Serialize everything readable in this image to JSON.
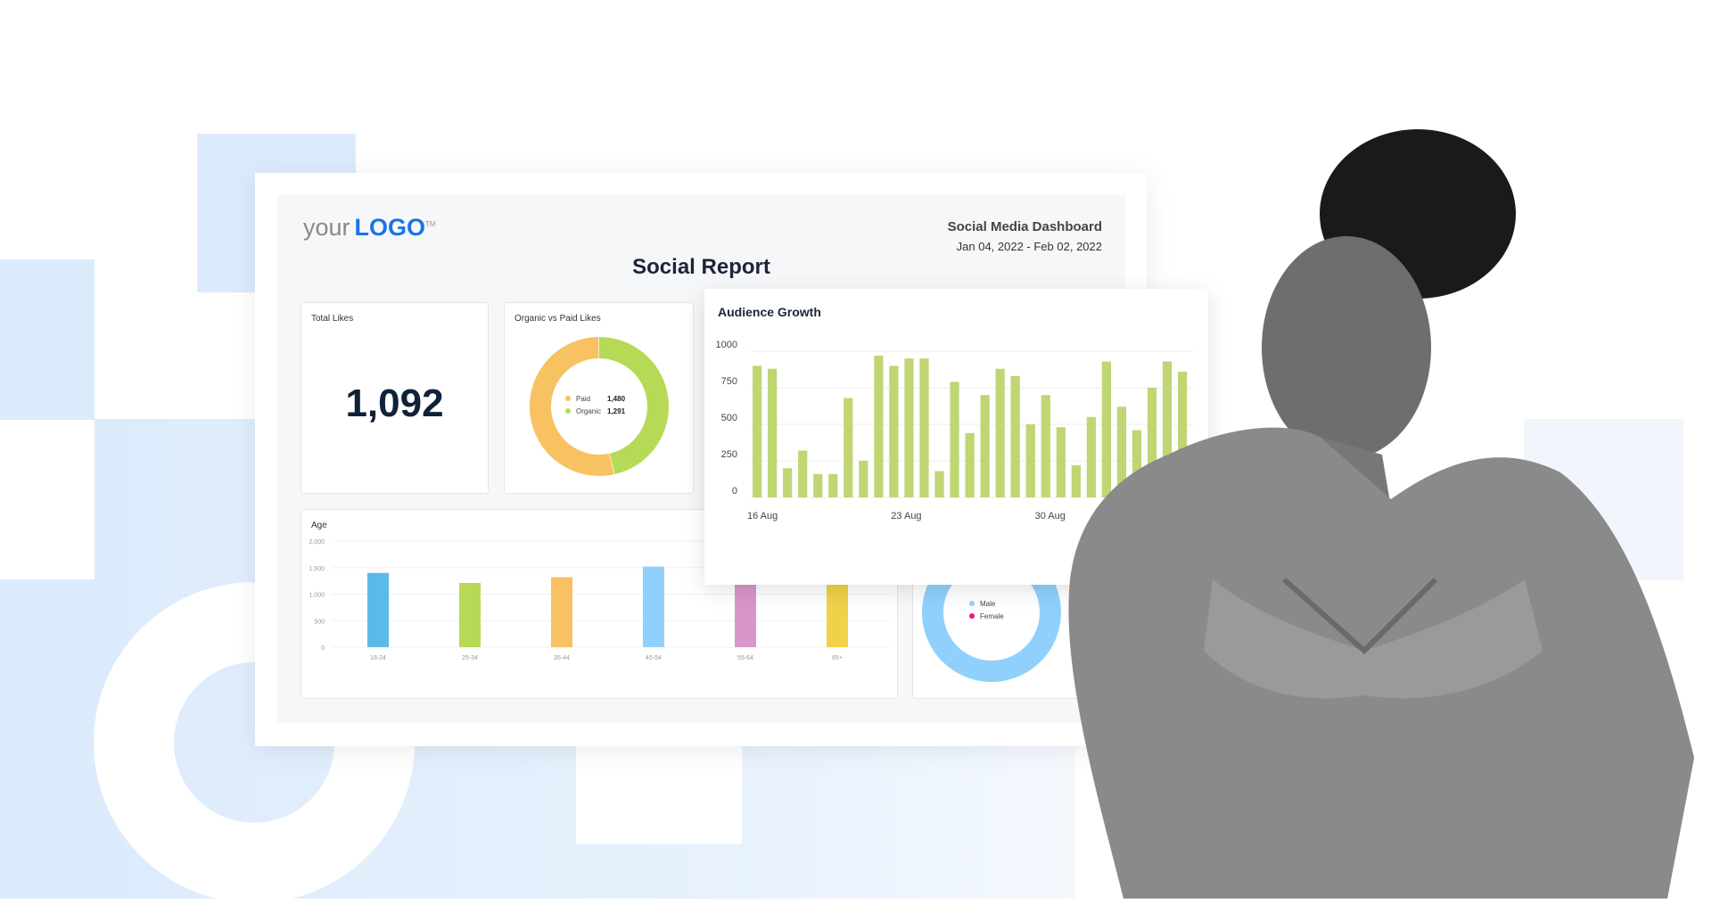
{
  "colors": {
    "accent": "#1a73e8",
    "bg_blue": "#dcebfc",
    "bar_green": "#bfd672",
    "paid": "#f8c162",
    "organic": "#b6da55",
    "male": "#8fd1fc",
    "female": "#f0147d"
  },
  "header": {
    "logo_text_your": "your",
    "logo_text_logo": "LOGO",
    "logo_tm": "TM",
    "dashboard_name": "Social Media Dashboard",
    "date_range": "Jan 04, 2022 - Feb 02, 2022",
    "title": "Social Report"
  },
  "total_likes": {
    "title": "Total Likes",
    "value": "1,092"
  },
  "chart_data": [
    {
      "type": "pie",
      "title": "Organic vs Paid Likes",
      "donut": true,
      "labels": [
        "Paid",
        "Organic"
      ],
      "values": [
        1480,
        1291
      ],
      "display_values": [
        "1,480",
        "1,291"
      ],
      "colors": [
        "#f8c162",
        "#b6da55"
      ]
    },
    {
      "type": "bar",
      "title": "Audience Growth",
      "ylim": [
        0,
        1000
      ],
      "yticks": [
        "0",
        "250",
        "500",
        "750",
        "1000"
      ],
      "xtick_labels": [
        "16 Aug",
        "23 Aug",
        "30 Aug"
      ],
      "values": [
        900,
        880,
        200,
        320,
        160,
        160,
        680,
        250,
        970,
        900,
        950,
        950,
        180,
        790,
        440,
        700,
        880,
        830,
        500,
        700,
        480,
        220,
        550,
        930,
        620,
        460,
        750,
        930,
        860
      ],
      "color": "#bfd672",
      "grid": true
    },
    {
      "type": "bar",
      "title": "Age",
      "categories": [
        "18-24",
        "25-34",
        "35-44",
        "45-54",
        "55-64",
        "65+"
      ],
      "values": [
        1400,
        1210,
        1320,
        1520,
        1230,
        1340
      ],
      "ylim": [
        0,
        2000
      ],
      "yticks": [
        "0",
        "500",
        "1,000",
        "1,500",
        "2,000"
      ],
      "colors": [
        "#5bbae8",
        "#b6da55",
        "#f8c162",
        "#8fd1fc",
        "#d897c9",
        "#f2d14a"
      ],
      "grid": true
    },
    {
      "type": "pie",
      "donut": true,
      "labels": [
        "Male",
        "Female"
      ],
      "colors": [
        "#8fd1fc",
        "#f0147d"
      ]
    }
  ]
}
